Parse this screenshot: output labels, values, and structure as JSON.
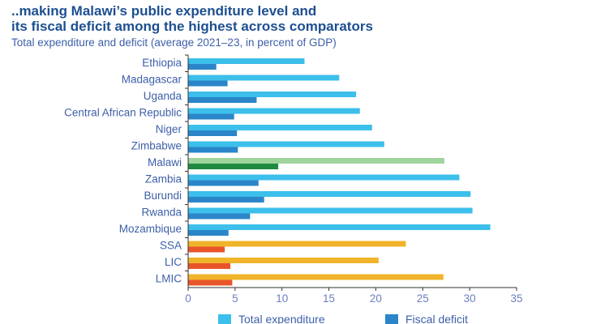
{
  "title_line1": "..making Malawi’s public expenditure level and",
  "title_line2": "its fiscal deficit among the highest across comparators",
  "subtitle": "Total expenditure and deficit (average 2021–23, in percent of GDP)",
  "colors": {
    "country_total": "#3cbfea",
    "country_deficit": "#2a86c8",
    "malawi_total": "#9fd49c",
    "malawi_deficit": "#1f8a40",
    "group_total": "#f0b42a",
    "group_deficit": "#e8552b",
    "axis": "#333333"
  },
  "chart_data": {
    "type": "bar",
    "orientation": "horizontal",
    "title": "Total expenditure and deficit (average 2021–23, in percent of GDP)",
    "categories": [
      "Ethiopia",
      "Madagascar",
      "Uganda",
      "Central African Republic",
      "Niger",
      "Zimbabwe",
      "Malawi",
      "Zambia",
      "Burundi",
      "Rwanda",
      "Mozambique",
      "SSA",
      "LIC",
      "LMIC"
    ],
    "groups": [
      "country",
      "country",
      "country",
      "country",
      "country",
      "country",
      "malawi",
      "country",
      "country",
      "country",
      "country",
      "group",
      "group",
      "group"
    ],
    "series": [
      {
        "name": "Total expenditure",
        "values": [
          12.4,
          16.1,
          17.9,
          18.3,
          19.6,
          20.9,
          27.3,
          28.9,
          30.1,
          30.3,
          32.2,
          23.2,
          20.3,
          27.2
        ]
      },
      {
        "name": "Fiscal deficit",
        "values": [
          3.0,
          4.2,
          7.3,
          4.9,
          5.2,
          5.3,
          9.6,
          7.5,
          8.1,
          6.6,
          4.3,
          3.9,
          4.5,
          4.7
        ]
      }
    ],
    "xlim": [
      0,
      35
    ],
    "xticks": [
      0,
      5,
      10,
      15,
      20,
      25,
      30,
      35
    ],
    "legend": "bottom",
    "grid": false
  }
}
